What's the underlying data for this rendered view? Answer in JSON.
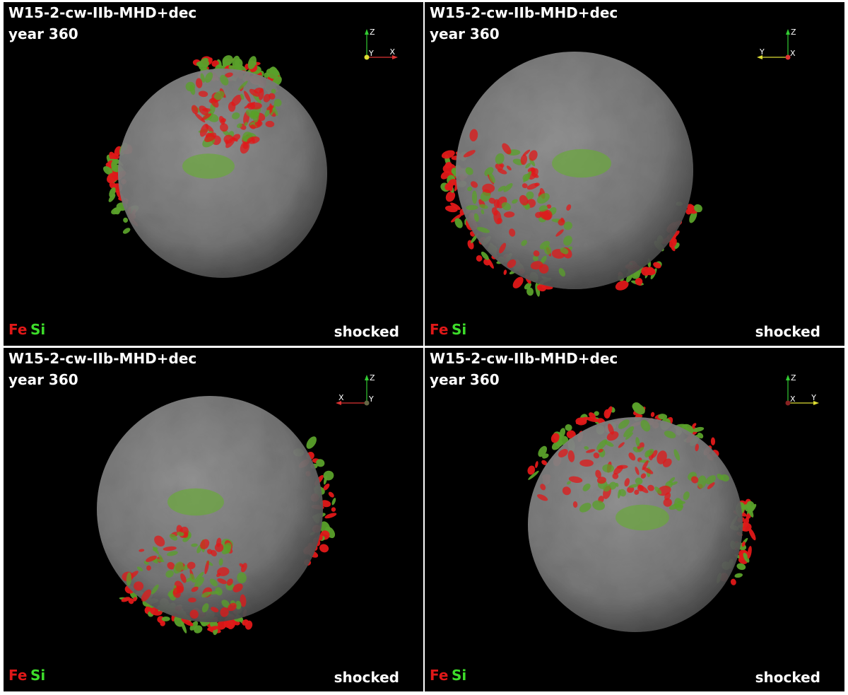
{
  "panels": [
    {
      "title": "W15-2-cw-IIb-MHD+dec",
      "year": "year 360",
      "legend": [
        "Fe",
        "Si"
      ],
      "label": "shocked",
      "axes": [
        "Z",
        "Y",
        "X"
      ]
    },
    {
      "title": "W15-2-cw-IIb-MHD+dec",
      "year": "year 360",
      "legend": [
        "Fe",
        "Si"
      ],
      "label": "shocked",
      "axes": [
        "Z",
        "X",
        "Y"
      ]
    },
    {
      "title": "W15-2-cw-IIb-MHD+dec",
      "year": "year 360",
      "legend": [
        "Fe",
        "Si"
      ],
      "label": "shocked",
      "axes": [
        "Z",
        "Y",
        "X"
      ]
    },
    {
      "title": "W15-2-cw-IIb-MHD+dec",
      "year": "year 360",
      "legend": [
        "Fe",
        "Si"
      ],
      "label": "shocked",
      "axes": [
        "Z",
        "X",
        "Y"
      ]
    }
  ]
}
